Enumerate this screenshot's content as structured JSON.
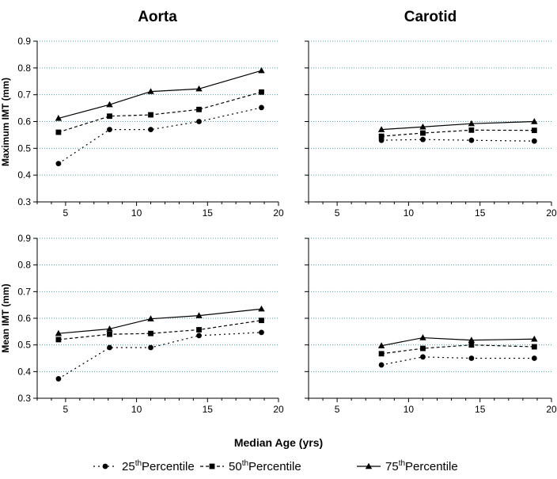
{
  "figure": {
    "column_titles": [
      "Aorta",
      "Carotid"
    ],
    "row_ylabels": [
      "Maximum IMT (mm)",
      "Mean IMT (mm)"
    ],
    "xlabel": "Median Age (yrs)"
  },
  "legend": {
    "position": "bottom",
    "items": [
      {
        "pre": "25",
        "sup": "th",
        "post": "Percentile",
        "marker": "circle",
        "line": "dotted"
      },
      {
        "pre": "50",
        "sup": "th",
        "post": "Percentile",
        "marker": "square",
        "line": "dashed"
      },
      {
        "pre": "75",
        "sup": "th",
        "post": "Percentile",
        "marker": "triangle",
        "line": "solid"
      }
    ]
  },
  "chart_data": [
    {
      "type": "line",
      "panel": "top-left",
      "title": "Aorta",
      "xlabel": "",
      "ylabel": "Maximum IMT (mm)",
      "xlim": [
        3,
        20
      ],
      "ylim": [
        0.3,
        0.9
      ],
      "xticks": [
        5,
        10,
        15,
        20
      ],
      "yticks": [
        0.3,
        0.4,
        0.5,
        0.6,
        0.7,
        0.8,
        0.9
      ],
      "grid": "horizontal dotted",
      "x": [
        4.5,
        8.1,
        11.0,
        14.4,
        18.8
      ],
      "series": [
        {
          "name": "25thPercentile",
          "values": [
            0.443,
            0.57,
            0.57,
            0.6,
            0.652
          ]
        },
        {
          "name": "50thPercentile",
          "values": [
            0.56,
            0.62,
            0.625,
            0.645,
            0.71
          ]
        },
        {
          "name": "75thPercentile",
          "values": [
            0.612,
            0.663,
            0.712,
            0.722,
            0.79
          ]
        }
      ]
    },
    {
      "type": "line",
      "panel": "top-right",
      "title": "Carotid",
      "xlabel": "",
      "ylabel": "",
      "xlim": [
        3,
        20
      ],
      "ylim": [
        0.3,
        0.9
      ],
      "xticks": [
        5,
        10,
        15,
        20
      ],
      "yticks": [],
      "grid": "horizontal dotted",
      "x": [
        8.1,
        11.0,
        14.4,
        18.8
      ],
      "series": [
        {
          "name": "25thPercentile",
          "values": [
            0.53,
            0.533,
            0.53,
            0.527
          ]
        },
        {
          "name": "50thPercentile",
          "values": [
            0.545,
            0.557,
            0.568,
            0.567
          ]
        },
        {
          "name": "75thPercentile",
          "values": [
            0.57,
            0.58,
            0.592,
            0.6
          ]
        }
      ]
    },
    {
      "type": "line",
      "panel": "bottom-left",
      "title": "",
      "xlabel": "Median Age (yrs)",
      "ylabel": "Mean IMT (mm)",
      "xlim": [
        3,
        20
      ],
      "ylim": [
        0.3,
        0.9
      ],
      "xticks": [
        5,
        10,
        15,
        20
      ],
      "yticks": [
        0.3,
        0.4,
        0.5,
        0.6,
        0.7,
        0.8,
        0.9
      ],
      "grid": "horizontal dotted",
      "x": [
        4.5,
        8.1,
        11.0,
        14.4,
        18.8
      ],
      "series": [
        {
          "name": "25thPercentile",
          "values": [
            0.373,
            0.49,
            0.49,
            0.535,
            0.547
          ]
        },
        {
          "name": "50thPercentile",
          "values": [
            0.52,
            0.54,
            0.543,
            0.557,
            0.592
          ]
        },
        {
          "name": "75thPercentile",
          "values": [
            0.543,
            0.56,
            0.598,
            0.61,
            0.635
          ]
        }
      ]
    },
    {
      "type": "line",
      "panel": "bottom-right",
      "title": "",
      "xlabel": "Median Age (yrs)",
      "ylabel": "",
      "xlim": [
        3,
        20
      ],
      "ylim": [
        0.3,
        0.9
      ],
      "xticks": [
        5,
        10,
        15,
        20
      ],
      "yticks": [],
      "grid": "horizontal dotted",
      "x": [
        8.1,
        11.0,
        14.4,
        18.8
      ],
      "series": [
        {
          "name": "25thPercentile",
          "values": [
            0.425,
            0.455,
            0.45,
            0.45
          ]
        },
        {
          "name": "50thPercentile",
          "values": [
            0.467,
            0.487,
            0.5,
            0.493
          ]
        },
        {
          "name": "75thPercentile",
          "values": [
            0.497,
            0.527,
            0.518,
            0.522
          ]
        }
      ]
    }
  ],
  "colors": {
    "line": "#000000",
    "grid": "#4aa3a3",
    "axis": "#000000",
    "background": "#ffffff"
  }
}
